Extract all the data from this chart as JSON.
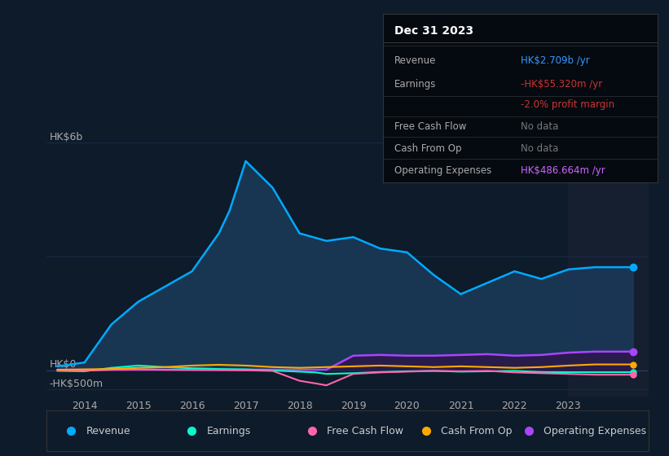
{
  "bg_color": "#0d1b2a",
  "title": "Dec 31 2023",
  "info_box_rows": [
    {
      "label": "Revenue",
      "value": "HK$2.709b /yr",
      "value_color": "#3399ff"
    },
    {
      "label": "Earnings",
      "value": "-HK$55.320m /yr",
      "value_color": "#cc3333"
    },
    {
      "label": "",
      "value": "-2.0% profit margin",
      "value_color": "#cc3333"
    },
    {
      "label": "Free Cash Flow",
      "value": "No data",
      "value_color": "#777777"
    },
    {
      "label": "Cash From Op",
      "value": "No data",
      "value_color": "#777777"
    },
    {
      "label": "Operating Expenses",
      "value": "HK$486.664m /yr",
      "value_color": "#cc66ff"
    }
  ],
  "y_label_top": "HK$6b",
  "y_label_zero": "HK$0",
  "y_label_neg": "-HK$500m",
  "ylim": [
    -700,
    6500
  ],
  "xlim": [
    2013.3,
    2024.5
  ],
  "revenue": {
    "x": [
      2013.5,
      2014,
      2014.5,
      2015,
      2015.5,
      2016,
      2016.3,
      2016.5,
      2016.7,
      2017,
      2017.5,
      2018,
      2018.5,
      2019,
      2019.5,
      2020,
      2020.5,
      2021,
      2021.5,
      2022,
      2022.5,
      2023,
      2023.5,
      2024.2
    ],
    "y": [
      100,
      200,
      1200,
      1800,
      2200,
      2600,
      3200,
      3600,
      4200,
      5500,
      4800,
      3600,
      3400,
      3500,
      3200,
      3100,
      2500,
      2000,
      2300,
      2600,
      2400,
      2650,
      2709,
      2709
    ],
    "color": "#00aaff",
    "fill_color": "#1a3a5a",
    "lw": 1.8
  },
  "earnings": {
    "x": [
      2013.5,
      2014,
      2014.5,
      2015,
      2015.5,
      2016,
      2016.5,
      2017,
      2017.5,
      2018,
      2018.3,
      2018.5,
      2019,
      2019.5,
      2020,
      2020.5,
      2021,
      2021.5,
      2022,
      2022.5,
      2023,
      2023.5,
      2024.2
    ],
    "y": [
      -20,
      -30,
      60,
      120,
      80,
      50,
      30,
      20,
      -10,
      -40,
      -60,
      -100,
      -80,
      -50,
      -30,
      -20,
      -40,
      -30,
      -20,
      -50,
      -55,
      -55,
      -55
    ],
    "color": "#00ffcc",
    "lw": 1.5
  },
  "free_cash_flow": {
    "x": [
      2013.5,
      2014,
      2014.5,
      2015,
      2015.5,
      2016,
      2016.5,
      2017,
      2017.5,
      2018,
      2018.3,
      2018.5,
      2019,
      2019.5,
      2020,
      2020.5,
      2021,
      2021.5,
      2022,
      2022.5,
      2023,
      2023.5,
      2024.2
    ],
    "y": [
      -10,
      -15,
      10,
      20,
      10,
      5,
      0,
      -5,
      -20,
      -280,
      -350,
      -400,
      -100,
      -60,
      -40,
      -20,
      -30,
      -20,
      -60,
      -80,
      -100,
      -120,
      -120
    ],
    "color": "#ff66aa",
    "lw": 1.5
  },
  "cash_from_op": {
    "x": [
      2013.5,
      2014,
      2014.5,
      2015,
      2015.5,
      2016,
      2016.5,
      2017,
      2017.5,
      2018,
      2018.5,
      2019,
      2019.5,
      2020,
      2020.5,
      2021,
      2021.5,
      2022,
      2022.5,
      2023,
      2023.5,
      2024.2
    ],
    "y": [
      10,
      20,
      30,
      60,
      80,
      120,
      140,
      120,
      80,
      60,
      80,
      100,
      120,
      100,
      80,
      100,
      80,
      60,
      80,
      120,
      150,
      150
    ],
    "color": "#ffaa00",
    "lw": 1.5
  },
  "operating_expenses": {
    "x": [
      2013.5,
      2014,
      2014.5,
      2015,
      2015.5,
      2016,
      2016.5,
      2017,
      2017.5,
      2018,
      2018.5,
      2019,
      2019.5,
      2020,
      2020.5,
      2021,
      2021.5,
      2022,
      2022.5,
      2023,
      2023.5,
      2024.2
    ],
    "y": [
      10,
      10,
      10,
      10,
      10,
      10,
      10,
      10,
      10,
      10,
      10,
      380,
      400,
      380,
      380,
      400,
      420,
      380,
      400,
      460,
      487,
      487
    ],
    "color": "#aa44ff",
    "fill_color": "#2a1a4a",
    "lw": 1.8
  },
  "legend": [
    {
      "label": "Revenue",
      "color": "#00aaff"
    },
    {
      "label": "Earnings",
      "color": "#00ffcc"
    },
    {
      "label": "Free Cash Flow",
      "color": "#ff66aa"
    },
    {
      "label": "Cash From Op",
      "color": "#ffaa00"
    },
    {
      "label": "Operating Expenses",
      "color": "#aa44ff"
    }
  ],
  "grid_color": "#1e3050",
  "zero_line_color": "#2a4060",
  "highlight_x_start": 2023.0,
  "highlight_x_end": 2024.5,
  "highlight_color": "#151f30",
  "separator_color": "#2a3a4a",
  "label_color": "#aaaaaa",
  "text_color": "#cccccc"
}
